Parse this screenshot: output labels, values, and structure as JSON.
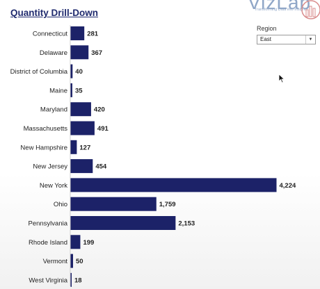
{
  "title": "Quantity Drill-Down",
  "logo": {
    "name": "VizLab",
    "tagline": "Transforming Data into Insight",
    "color": "#8fa6c7",
    "accent": "#d98c8c"
  },
  "filter": {
    "label": "Region",
    "value": "East"
  },
  "colors": {
    "bar": "#1c2268",
    "text": "#222222"
  },
  "chart_data": {
    "type": "bar",
    "orientation": "horizontal",
    "title": "Quantity Drill-Down",
    "categories": [
      "Connecticut",
      "Delaware",
      "District of Columbia",
      "Maine",
      "Maryland",
      "Massachusetts",
      "New Hampshire",
      "New Jersey",
      "New York",
      "Ohio",
      "Pennsylvania",
      "Rhode Island",
      "Vermont",
      "West Virginia"
    ],
    "values": [
      281,
      367,
      40,
      35,
      420,
      491,
      127,
      454,
      4224,
      1759,
      2153,
      199,
      50,
      18
    ],
    "value_labels": [
      "281",
      "367",
      "40",
      "35",
      "420",
      "491",
      "127",
      "454",
      "4,224",
      "1,759",
      "2,153",
      "199",
      "50",
      "18"
    ],
    "xlim": [
      0,
      4224
    ],
    "grid": false,
    "legend": false
  }
}
